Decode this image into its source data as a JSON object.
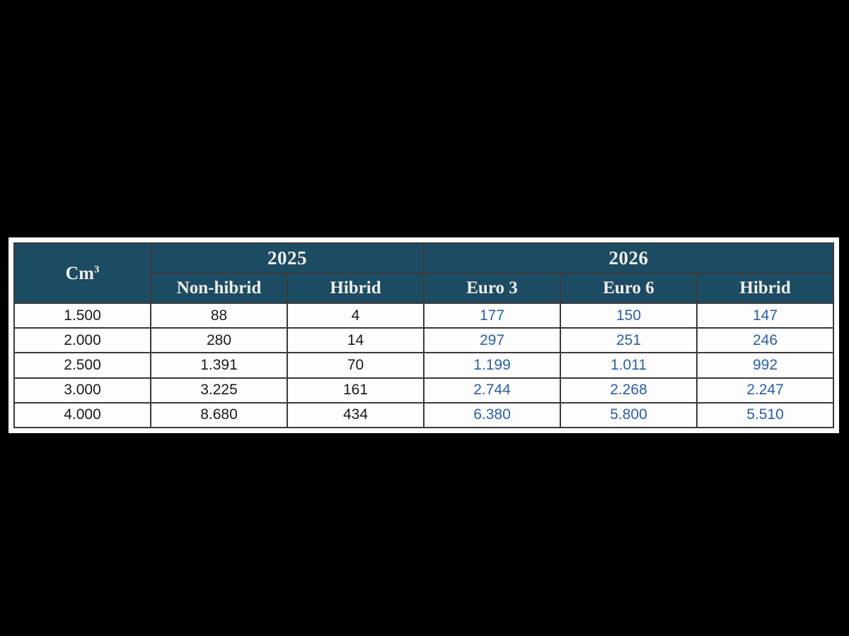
{
  "colors": {
    "page_bg": "#000000",
    "frame_bg": "#fdfdfd",
    "header_bg": "#1c4b64",
    "header_text": "#f2efe9",
    "border": "#3a3a3a",
    "black_text": "#1a1a1a",
    "blue_text": "#2a5fa8"
  },
  "table": {
    "corner": {
      "base": "Cm",
      "sup": "3"
    },
    "year_groups": [
      {
        "label": "2025",
        "colspan": 2
      },
      {
        "label": "2026",
        "colspan": 3
      }
    ],
    "sub_headers": [
      "Non-hibrid",
      "Hibrid",
      "Euro 3",
      "Euro 6",
      "Hibrid"
    ],
    "rows": [
      {
        "cm3": "1.500",
        "values": [
          "88",
          "4",
          "177",
          "150",
          "147"
        ]
      },
      {
        "cm3": "2.000",
        "values": [
          "280",
          "14",
          "297",
          "251",
          "246"
        ]
      },
      {
        "cm3": "2.500",
        "values": [
          "1.391",
          "70",
          "1.199",
          "1.011",
          "992"
        ]
      },
      {
        "cm3": "3.000",
        "values": [
          "3.225",
          "161",
          "2.744",
          "2.268",
          "2.247"
        ]
      },
      {
        "cm3": "4.000",
        "values": [
          "8.680",
          "434",
          "6.380",
          "5.800",
          "5.510"
        ]
      }
    ]
  },
  "chart_data": {
    "type": "table",
    "title": "",
    "columns": [
      "Cm3",
      "2025 Non-hibrid",
      "2025 Hibrid",
      "2026 Euro 3",
      "2026 Euro 6",
      "2026 Hibrid"
    ],
    "rows": [
      [
        "1.500",
        "88",
        "4",
        "177",
        "150",
        "147"
      ],
      [
        "2.000",
        "280",
        "14",
        "297",
        "251",
        "246"
      ],
      [
        "2.500",
        "1.391",
        "70",
        "1.199",
        "1.011",
        "992"
      ],
      [
        "3.000",
        "3.225",
        "161",
        "2.744",
        "2.268",
        "2.247"
      ],
      [
        "4.000",
        "8.680",
        "434",
        "6.380",
        "5.800",
        "5.510"
      ]
    ],
    "rows_numeric": [
      [
        1500,
        88,
        4,
        177,
        150,
        147
      ],
      [
        2000,
        280,
        14,
        297,
        251,
        246
      ],
      [
        2500,
        1391,
        70,
        1199,
        1011,
        992
      ],
      [
        3000,
        3225,
        161,
        2744,
        2268,
        2247
      ],
      [
        4000,
        8680,
        434,
        6380,
        5800,
        5510
      ]
    ],
    "number_format": "dot as thousands separator",
    "notes": "Header group 2025 spans columns Non-hibrid and Hibrid; header group 2026 spans Euro 3, Euro 6, Hibrid. 2026 values rendered in blue, 2025 values in black."
  }
}
